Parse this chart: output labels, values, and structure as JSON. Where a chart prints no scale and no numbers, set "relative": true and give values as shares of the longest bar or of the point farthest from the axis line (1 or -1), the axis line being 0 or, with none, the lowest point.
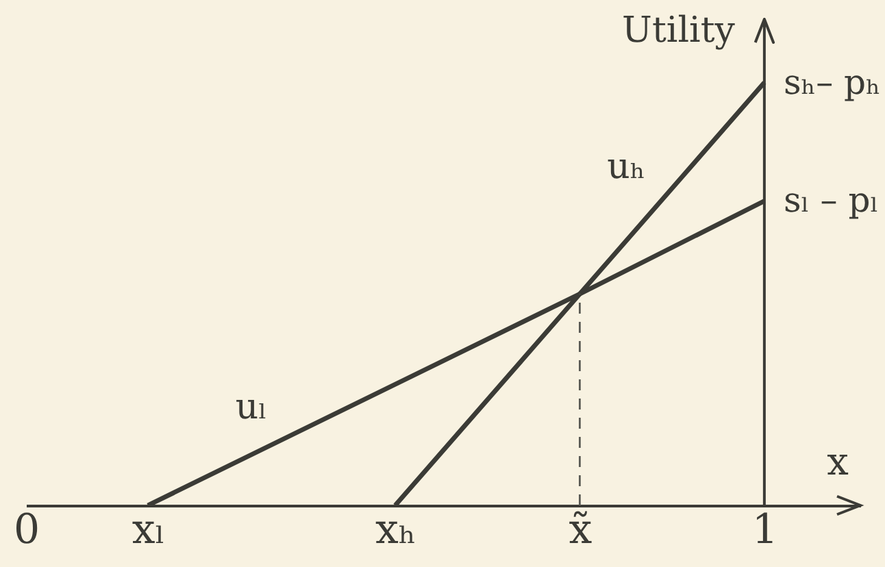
{
  "chart_data": {
    "type": "line",
    "xlabel": "x",
    "ylabel": "Utility",
    "relative": true,
    "line_style": "solid",
    "xlim": [
      0,
      1.13
    ],
    "xticks": [
      0,
      {
        "value": 0.165,
        "label": "xₗ"
      },
      {
        "value": 0.5,
        "label": "xₕ"
      },
      {
        "value": 0.75,
        "label": "x̃"
      },
      1
    ],
    "series": [
      {
        "name": "uₗ",
        "color": "#3b3b36",
        "x": [
          0.165,
          0.75,
          1
        ],
        "values": [
          0,
          0.5,
          0.72
        ]
      },
      {
        "name": "uₕ",
        "color": "#3b3b36",
        "x": [
          0.5,
          0.75,
          1
        ],
        "values": [
          0,
          0.5,
          1
        ]
      },
      {
        "color": "#5c5c56",
        "line_style": "dashed",
        "x": [
          0.75,
          0.75
        ],
        "values": [
          0,
          0.5
        ]
      }
    ],
    "ref_lines": [
      {
        "axis": "x",
        "value": 1,
        "color": "#3b3b36"
      }
    ],
    "annotations": [
      {
        "text": "sₕ– pₕ",
        "x": 1,
        "y": 1
      },
      {
        "text": "sₗ – pₗ",
        "x": 1,
        "y": 0.72
      }
    ]
  }
}
